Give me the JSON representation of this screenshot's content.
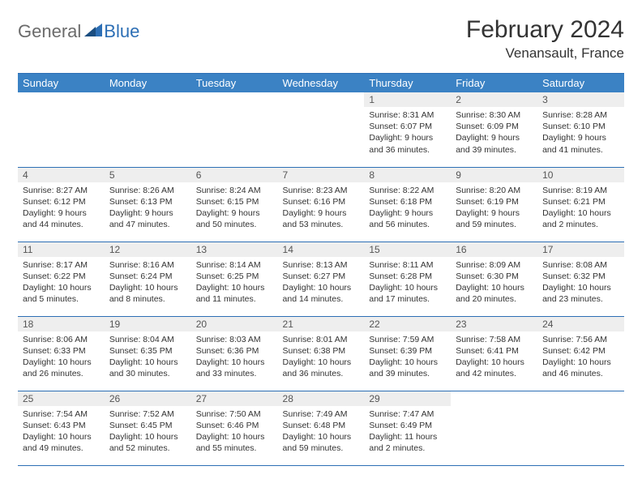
{
  "logo": {
    "general": "General",
    "blue": "Blue"
  },
  "title": "February 2024",
  "location": "Venansault, France",
  "colors": {
    "header_bg": "#3b82c4",
    "rule": "#2d6fb5",
    "daynum_bg": "#eeeeee",
    "text": "#333333"
  },
  "day_names": [
    "Sunday",
    "Monday",
    "Tuesday",
    "Wednesday",
    "Thursday",
    "Friday",
    "Saturday"
  ],
  "weeks": [
    [
      null,
      null,
      null,
      null,
      {
        "n": "1",
        "sr": "8:31 AM",
        "ss": "6:07 PM",
        "dl": "9 hours and 36 minutes."
      },
      {
        "n": "2",
        "sr": "8:30 AM",
        "ss": "6:09 PM",
        "dl": "9 hours and 39 minutes."
      },
      {
        "n": "3",
        "sr": "8:28 AM",
        "ss": "6:10 PM",
        "dl": "9 hours and 41 minutes."
      }
    ],
    [
      {
        "n": "4",
        "sr": "8:27 AM",
        "ss": "6:12 PM",
        "dl": "9 hours and 44 minutes."
      },
      {
        "n": "5",
        "sr": "8:26 AM",
        "ss": "6:13 PM",
        "dl": "9 hours and 47 minutes."
      },
      {
        "n": "6",
        "sr": "8:24 AM",
        "ss": "6:15 PM",
        "dl": "9 hours and 50 minutes."
      },
      {
        "n": "7",
        "sr": "8:23 AM",
        "ss": "6:16 PM",
        "dl": "9 hours and 53 minutes."
      },
      {
        "n": "8",
        "sr": "8:22 AM",
        "ss": "6:18 PM",
        "dl": "9 hours and 56 minutes."
      },
      {
        "n": "9",
        "sr": "8:20 AM",
        "ss": "6:19 PM",
        "dl": "9 hours and 59 minutes."
      },
      {
        "n": "10",
        "sr": "8:19 AM",
        "ss": "6:21 PM",
        "dl": "10 hours and 2 minutes."
      }
    ],
    [
      {
        "n": "11",
        "sr": "8:17 AM",
        "ss": "6:22 PM",
        "dl": "10 hours and 5 minutes."
      },
      {
        "n": "12",
        "sr": "8:16 AM",
        "ss": "6:24 PM",
        "dl": "10 hours and 8 minutes."
      },
      {
        "n": "13",
        "sr": "8:14 AM",
        "ss": "6:25 PM",
        "dl": "10 hours and 11 minutes."
      },
      {
        "n": "14",
        "sr": "8:13 AM",
        "ss": "6:27 PM",
        "dl": "10 hours and 14 minutes."
      },
      {
        "n": "15",
        "sr": "8:11 AM",
        "ss": "6:28 PM",
        "dl": "10 hours and 17 minutes."
      },
      {
        "n": "16",
        "sr": "8:09 AM",
        "ss": "6:30 PM",
        "dl": "10 hours and 20 minutes."
      },
      {
        "n": "17",
        "sr": "8:08 AM",
        "ss": "6:32 PM",
        "dl": "10 hours and 23 minutes."
      }
    ],
    [
      {
        "n": "18",
        "sr": "8:06 AM",
        "ss": "6:33 PM",
        "dl": "10 hours and 26 minutes."
      },
      {
        "n": "19",
        "sr": "8:04 AM",
        "ss": "6:35 PM",
        "dl": "10 hours and 30 minutes."
      },
      {
        "n": "20",
        "sr": "8:03 AM",
        "ss": "6:36 PM",
        "dl": "10 hours and 33 minutes."
      },
      {
        "n": "21",
        "sr": "8:01 AM",
        "ss": "6:38 PM",
        "dl": "10 hours and 36 minutes."
      },
      {
        "n": "22",
        "sr": "7:59 AM",
        "ss": "6:39 PM",
        "dl": "10 hours and 39 minutes."
      },
      {
        "n": "23",
        "sr": "7:58 AM",
        "ss": "6:41 PM",
        "dl": "10 hours and 42 minutes."
      },
      {
        "n": "24",
        "sr": "7:56 AM",
        "ss": "6:42 PM",
        "dl": "10 hours and 46 minutes."
      }
    ],
    [
      {
        "n": "25",
        "sr": "7:54 AM",
        "ss": "6:43 PM",
        "dl": "10 hours and 49 minutes."
      },
      {
        "n": "26",
        "sr": "7:52 AM",
        "ss": "6:45 PM",
        "dl": "10 hours and 52 minutes."
      },
      {
        "n": "27",
        "sr": "7:50 AM",
        "ss": "6:46 PM",
        "dl": "10 hours and 55 minutes."
      },
      {
        "n": "28",
        "sr": "7:49 AM",
        "ss": "6:48 PM",
        "dl": "10 hours and 59 minutes."
      },
      {
        "n": "29",
        "sr": "7:47 AM",
        "ss": "6:49 PM",
        "dl": "11 hours and 2 minutes."
      },
      null,
      null
    ]
  ],
  "labels": {
    "sunrise": "Sunrise:",
    "sunset": "Sunset:",
    "daylight": "Daylight:"
  }
}
